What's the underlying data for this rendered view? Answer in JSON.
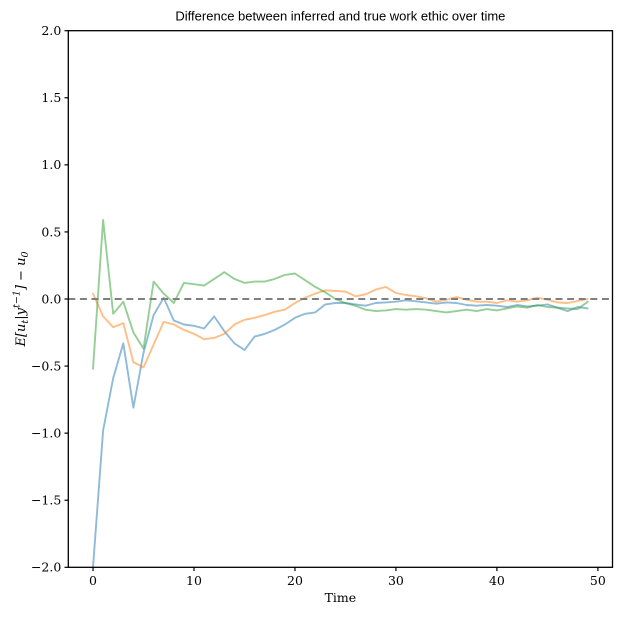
{
  "figure": {
    "title": "Difference between inferred and true work ethic over time",
    "background": "#ffffff",
    "spine_color": "#000000"
  },
  "chart_data": {
    "type": "line",
    "title": "Difference between inferred and true work ethic over time",
    "xlabel": "Time",
    "ylabel": "E[u_t|y^(t−1)] − u_0",
    "ylabel_parts": [
      {
        "t": "E",
        "pos": "norm"
      },
      {
        "t": "[",
        "pos": "norm"
      },
      {
        "t": "u",
        "pos": "norm"
      },
      {
        "t": "t",
        "pos": "sub"
      },
      {
        "t": "|",
        "pos": "norm"
      },
      {
        "t": "y",
        "pos": "norm"
      },
      {
        "t": "t−1",
        "pos": "sup"
      },
      {
        "t": "]",
        "pos": "norm"
      },
      {
        "t": " − ",
        "pos": "norm"
      },
      {
        "t": "u",
        "pos": "norm"
      },
      {
        "t": "0",
        "pos": "sub"
      }
    ],
    "xlim": [
      -2.45,
      51.45
    ],
    "ylim": [
      -2.0,
      2.0
    ],
    "grid": false,
    "legend": null,
    "xticks": [
      0,
      10,
      20,
      30,
      40,
      50
    ],
    "xtick_labels": [
      "0",
      "10",
      "20",
      "30",
      "40",
      "50"
    ],
    "yticks": [
      -2.0,
      -1.5,
      -1.0,
      -0.5,
      0.0,
      0.5,
      1.0,
      1.5,
      2.0
    ],
    "ytick_labels": [
      "−2.0",
      "−1.5",
      "−1.0",
      "−0.5",
      "0.0",
      "0.5",
      "1.0",
      "1.5",
      "2.0"
    ],
    "zero_line": {
      "y": 0,
      "color": "#7f7f7f",
      "style": "dashed",
      "width": 2
    },
    "x": [
      0,
      1,
      2,
      3,
      4,
      5,
      6,
      7,
      8,
      9,
      10,
      11,
      12,
      13,
      14,
      15,
      16,
      17,
      18,
      19,
      20,
      21,
      22,
      23,
      24,
      25,
      26,
      27,
      28,
      29,
      30,
      31,
      32,
      33,
      34,
      35,
      36,
      37,
      38,
      39,
      40,
      41,
      42,
      43,
      44,
      45,
      46,
      47,
      48,
      49
    ],
    "series": [
      {
        "name": "series-blue",
        "color": "#1f77b4",
        "opacity": 0.5,
        "values": [
          -2.0,
          -0.98,
          -0.59,
          -0.33,
          -0.81,
          -0.4,
          -0.12,
          0.01,
          -0.16,
          -0.19,
          -0.2,
          -0.22,
          -0.13,
          -0.24,
          -0.33,
          -0.38,
          -0.28,
          -0.26,
          -0.23,
          -0.19,
          -0.14,
          -0.11,
          -0.1,
          -0.04,
          -0.03,
          -0.03,
          -0.04,
          -0.05,
          -0.03,
          -0.025,
          -0.02,
          -0.01,
          -0.017,
          -0.025,
          -0.035,
          -0.025,
          -0.03,
          -0.045,
          -0.05,
          -0.045,
          -0.05,
          -0.06,
          -0.045,
          -0.055,
          -0.05,
          -0.04,
          -0.065,
          -0.09,
          -0.06,
          -0.07
        ]
      },
      {
        "name": "series-orange",
        "color": "#ff7f0e",
        "opacity": 0.5,
        "values": [
          0.04,
          -0.13,
          -0.21,
          -0.18,
          -0.47,
          -0.51,
          -0.34,
          -0.17,
          -0.19,
          -0.23,
          -0.26,
          -0.3,
          -0.29,
          -0.26,
          -0.19,
          -0.155,
          -0.14,
          -0.12,
          -0.095,
          -0.08,
          -0.03,
          0.01,
          0.04,
          0.065,
          0.06,
          0.055,
          0.02,
          0.035,
          0.07,
          0.09,
          0.045,
          0.03,
          0.02,
          0.005,
          -0.02,
          -0.005,
          0.015,
          -0.005,
          -0.02,
          -0.02,
          -0.03,
          -0.01,
          -0.02,
          -0.01,
          0.01,
          -0.005,
          -0.025,
          -0.03,
          -0.015,
          0.0
        ]
      },
      {
        "name": "series-green",
        "color": "#2ca02c",
        "opacity": 0.5,
        "values": [
          -0.52,
          0.59,
          -0.11,
          -0.02,
          -0.25,
          -0.37,
          0.13,
          0.04,
          -0.03,
          0.12,
          0.11,
          0.1,
          0.15,
          0.2,
          0.15,
          0.12,
          0.13,
          0.13,
          0.15,
          0.18,
          0.19,
          0.14,
          0.09,
          0.05,
          0.0,
          -0.03,
          -0.05,
          -0.08,
          -0.09,
          -0.085,
          -0.075,
          -0.08,
          -0.075,
          -0.08,
          -0.09,
          -0.1,
          -0.09,
          -0.08,
          -0.09,
          -0.075,
          -0.085,
          -0.07,
          -0.055,
          -0.065,
          -0.045,
          -0.06,
          -0.065,
          -0.07,
          -0.075,
          -0.02
        ]
      }
    ]
  }
}
